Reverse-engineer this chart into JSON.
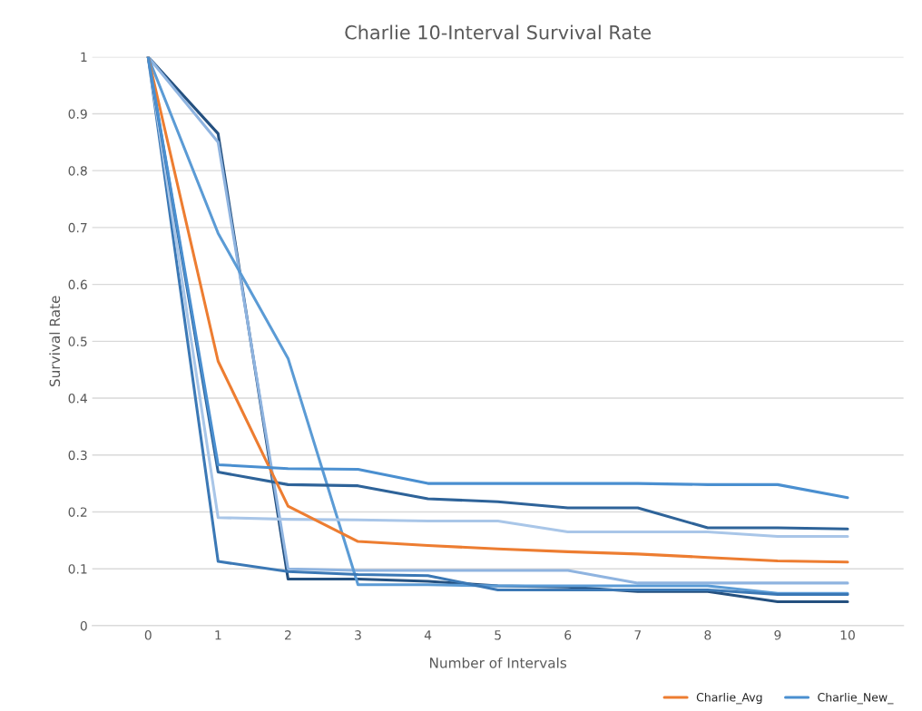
{
  "chart_data": {
    "type": "line",
    "title": "Charlie 10-Interval Survival Rate",
    "xlabel": "Number of Intervals",
    "ylabel": "Survival Rate",
    "categories": [
      "0",
      "1",
      "2",
      "3",
      "4",
      "5",
      "6",
      "7",
      "8",
      "9",
      "10"
    ],
    "series": [
      {
        "color": "#24507f",
        "values": [
          1,
          0.865,
          0.082,
          0.082,
          0.078,
          0.07,
          0.068,
          0.06,
          0.06,
          0.042,
          0.042
        ]
      },
      {
        "color": "#8fb4e0",
        "values": [
          1,
          0.85,
          0.1,
          0.097,
          0.097,
          0.097,
          0.097,
          0.075,
          0.075,
          0.075,
          0.075
        ]
      },
      {
        "color": "#5b9bd5",
        "values": [
          1,
          0.69,
          0.47,
          0.072,
          0.072,
          0.07,
          0.07,
          0.07,
          0.07,
          0.057,
          0.057
        ]
      },
      {
        "color": "#3b78b5",
        "values": [
          1,
          0.113,
          0.095,
          0.09,
          0.088,
          0.063,
          0.063,
          0.063,
          0.063,
          0.055,
          0.055
        ]
      },
      {
        "color": "#a9c6e8",
        "values": [
          1,
          0.19,
          0.187,
          0.186,
          0.184,
          0.184,
          0.165,
          0.165,
          0.165,
          0.157,
          0.157
        ]
      },
      {
        "color": "#2e6399",
        "values": [
          1,
          0.27,
          0.248,
          0.246,
          0.223,
          0.218,
          0.207,
          0.207,
          0.172,
          0.172,
          0.17
        ]
      },
      {
        "name": "Charlie_Avg",
        "color": "#ed7d31",
        "values": [
          1,
          0.465,
          0.21,
          0.148,
          0.141,
          0.135,
          0.13,
          0.126,
          0.12,
          0.114,
          0.112
        ]
      },
      {
        "name": "Charlie_New_",
        "color": "#4a8fd0",
        "values": [
          1,
          0.283,
          0.276,
          0.275,
          0.25,
          0.25,
          0.25,
          0.25,
          0.248,
          0.248,
          0.225
        ]
      }
    ],
    "ylim": [
      0,
      1
    ],
    "yticks": [
      0,
      0.1,
      0.2,
      0.3,
      0.4,
      0.5,
      0.6,
      0.7,
      0.8,
      0.9,
      1
    ],
    "grid": "y",
    "legend": "bottom right",
    "marker": "none",
    "line_style": "solid"
  }
}
